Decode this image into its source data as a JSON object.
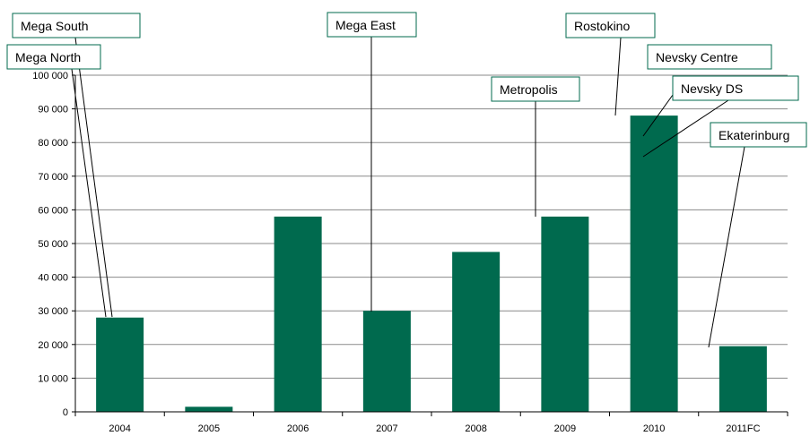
{
  "chart_data": {
    "type": "bar",
    "title": "",
    "xlabel": "",
    "ylabel": "",
    "categories": [
      "2004",
      "2005",
      "2006",
      "2007",
      "2008",
      "2009",
      "2010",
      "2011FC"
    ],
    "values": [
      28000,
      1500,
      58000,
      30000,
      47500,
      58000,
      88000,
      19500
    ],
    "ylim": [
      0,
      100000
    ],
    "yticks": [
      0,
      10000,
      20000,
      30000,
      40000,
      50000,
      60000,
      70000,
      80000,
      90000,
      100000
    ],
    "ytick_labels": [
      "0",
      "10 000",
      "20 000",
      "30 000",
      "40 000",
      "50 000",
      "60 000",
      "70 000",
      "80 000",
      "90 000",
      "100 000"
    ],
    "grid": true,
    "bar_color": "#006A4E",
    "callout_border_color": "#006A4E",
    "annotations": [
      {
        "label": "Mega South",
        "category": "2004"
      },
      {
        "label": "Mega North",
        "category": "2004"
      },
      {
        "label": "Mega East",
        "category": "2007"
      },
      {
        "label": "Metropolis",
        "category": "2009"
      },
      {
        "label": "Rostokino",
        "category": "2010"
      },
      {
        "label": "Nevsky Centre",
        "category": "2010"
      },
      {
        "label": "Nevsky DS",
        "category": "2010"
      },
      {
        "label": "Ekaterinburg",
        "category": "2011FC"
      }
    ]
  }
}
